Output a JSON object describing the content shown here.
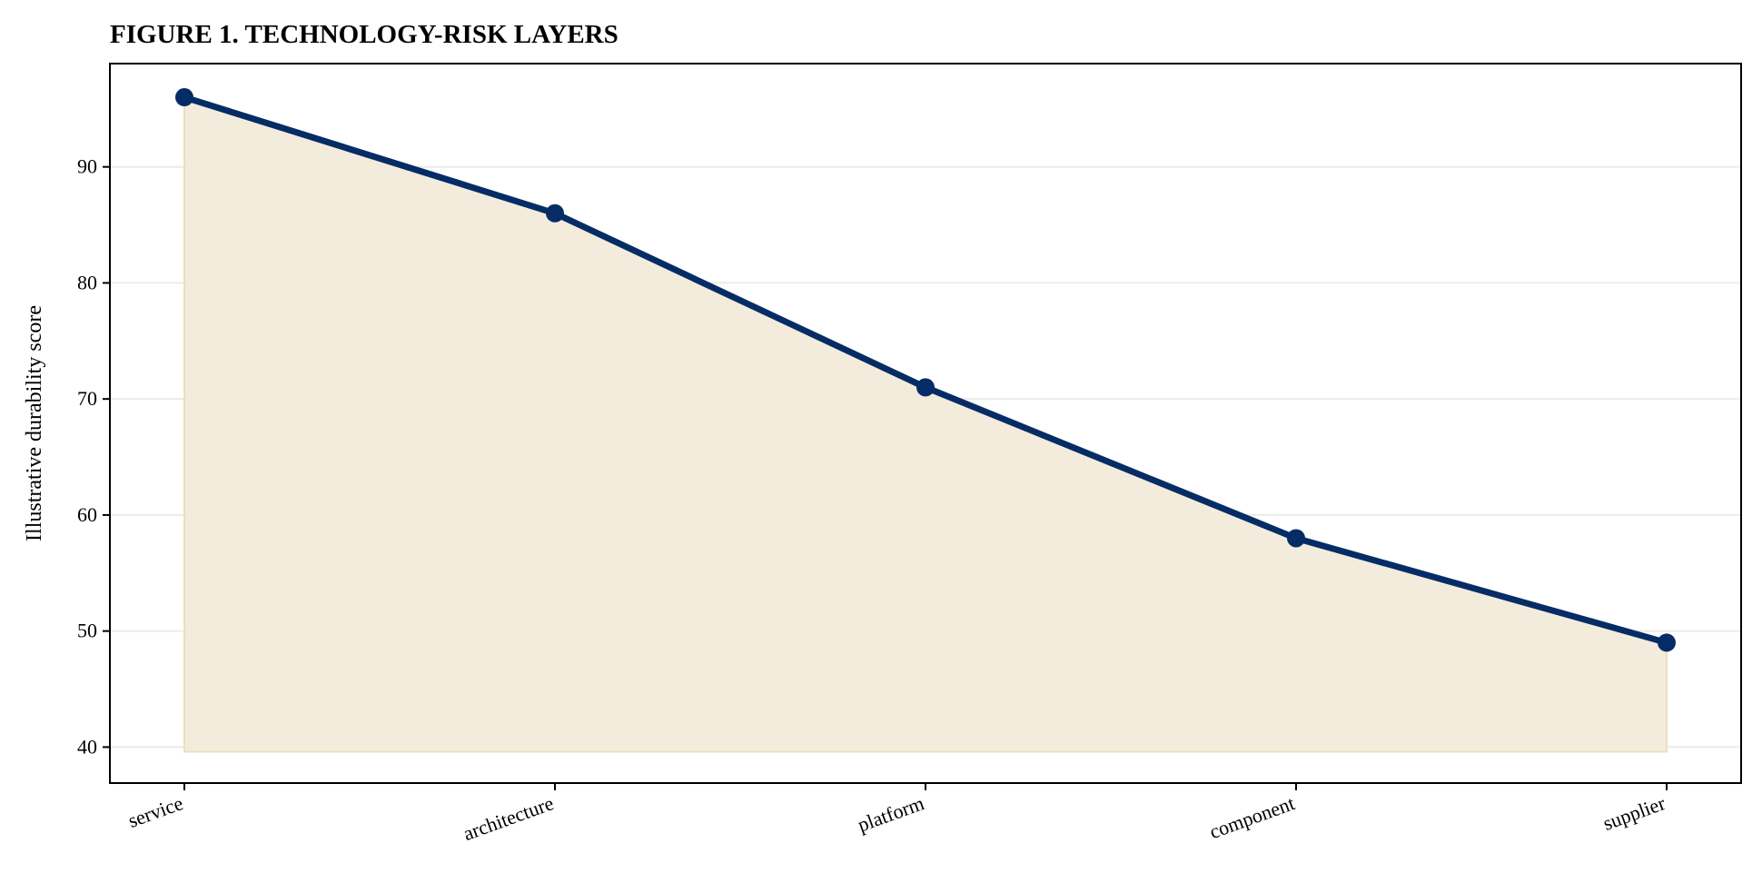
{
  "chart_data": {
    "type": "area",
    "title": "FIGURE 1. TECHNOLOGY-RISK LAYERS",
    "xlabel": "",
    "ylabel": "Illustrative durability score",
    "categories": [
      "service",
      "architecture",
      "platform",
      "component",
      "supplier"
    ],
    "series": [
      {
        "values": [
          96,
          86,
          71,
          58,
          49
        ]
      }
    ],
    "fill_baseline": 39.6,
    "ylim": [
      36.9,
      98.9
    ],
    "yticks": [
      40,
      50,
      60,
      70,
      80,
      90
    ],
    "grid": {
      "y": true,
      "x": false
    },
    "legend": "none",
    "colors": {
      "line": "#062c66",
      "marker": "#062c66",
      "fill": "#f3ecdc",
      "fill_edge": "#ebdfbe",
      "grid": "#ebebeb",
      "axis": "#000000"
    }
  }
}
